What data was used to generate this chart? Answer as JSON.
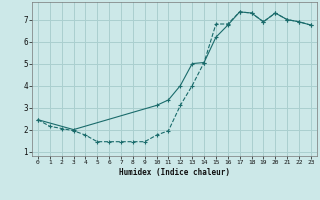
{
  "xlabel": "Humidex (Indice chaleur)",
  "bg_color": "#cce8e8",
  "grid_color": "#aacfcf",
  "line_color": "#1a6b6b",
  "xlim": [
    -0.5,
    23.5
  ],
  "ylim": [
    0.8,
    7.8
  ],
  "xticks": [
    0,
    1,
    2,
    3,
    4,
    5,
    6,
    7,
    8,
    9,
    10,
    11,
    12,
    13,
    14,
    15,
    16,
    17,
    18,
    19,
    20,
    21,
    22,
    23
  ],
  "yticks": [
    1,
    2,
    3,
    4,
    5,
    6,
    7
  ],
  "curve1_x": [
    0,
    1,
    2,
    3,
    4,
    5,
    6,
    7,
    8,
    9,
    10,
    11,
    12,
    13,
    14,
    15,
    16,
    17,
    18,
    19,
    20,
    21,
    22,
    23
  ],
  "curve1_y": [
    2.45,
    2.15,
    2.05,
    1.95,
    1.75,
    1.45,
    1.45,
    1.45,
    1.45,
    1.45,
    1.75,
    1.95,
    3.1,
    4.0,
    5.05,
    6.8,
    6.8,
    7.35,
    7.3,
    6.9,
    7.3,
    7.0,
    6.9,
    6.75
  ],
  "curve2_x": [
    0,
    3,
    10,
    11,
    12,
    13,
    14,
    15,
    16,
    17,
    18,
    19,
    20,
    21,
    22,
    23
  ],
  "curve2_y": [
    2.45,
    2.0,
    3.1,
    3.35,
    4.0,
    5.0,
    5.05,
    6.2,
    6.75,
    7.35,
    7.3,
    6.9,
    7.3,
    7.0,
    6.9,
    6.75
  ]
}
